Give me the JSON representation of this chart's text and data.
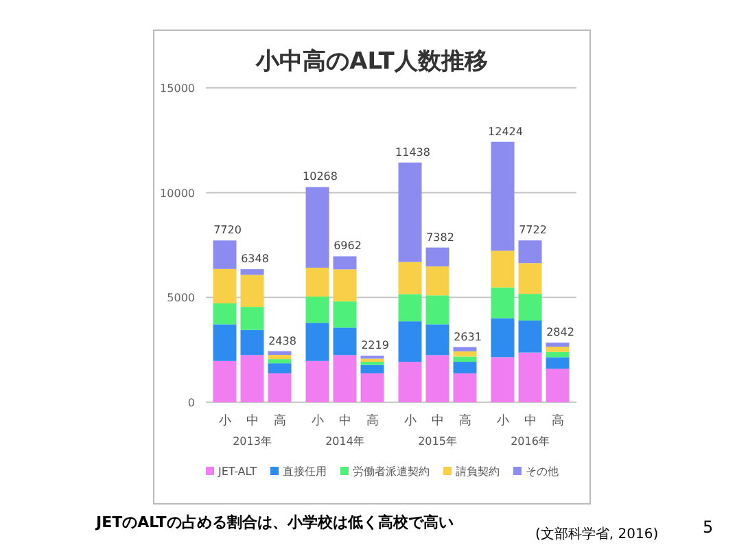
{
  "chart_data": {
    "type": "bar",
    "title": "小中高のALT人数推移",
    "stacked": true,
    "categories": [
      "小",
      "中",
      "高",
      "小",
      "中",
      "高",
      "小",
      "中",
      "高",
      "小",
      "中",
      "高"
    ],
    "series": [
      {
        "name": "JET-ALT",
        "color": "#f07ef0",
        "values": [
          1970,
          2250,
          1380,
          1970,
          2250,
          1380,
          1930,
          2250,
          1380,
          2150,
          2370,
          1600
        ]
      },
      {
        "name": "直接任用",
        "color": "#2e8bf0",
        "values": [
          1750,
          1200,
          480,
          1820,
          1310,
          400,
          1930,
          1470,
          550,
          1860,
          1530,
          550
        ]
      },
      {
        "name": "労働者派遣契約",
        "color": "#4ef07a",
        "values": [
          1000,
          1100,
          200,
          1250,
          1250,
          150,
          1300,
          1380,
          250,
          1470,
          1270,
          250
        ]
      },
      {
        "name": "請負契約",
        "color": "#f8d048",
        "values": [
          1640,
          1530,
          200,
          1380,
          1530,
          150,
          1530,
          1380,
          250,
          1750,
          1470,
          250
        ]
      },
      {
        "name": "その他",
        "color": "#8c8cf0",
        "values": [
          1360,
          268,
          178,
          3848,
          622,
          139,
          4748,
          902,
          201,
          5194,
          1082,
          192
        ]
      }
    ],
    "totals": [
      "7720",
      "6348",
      "2438",
      "10268",
      "6962",
      "2219",
      "11438",
      "7382",
      "2631",
      "12424",
      "7722",
      "2842"
    ],
    "ylim": [
      0,
      15000
    ],
    "yticks": [
      0,
      5000,
      10000,
      15000
    ],
    "grid": "y",
    "legend": "bottom",
    "annotations": [
      "2013年",
      "2014年",
      "2015年",
      "2016年",
      "JETのALTの占める割合は、小学校は低く高校で高い",
      "(文部科学省, 2016)",
      "5"
    ]
  }
}
